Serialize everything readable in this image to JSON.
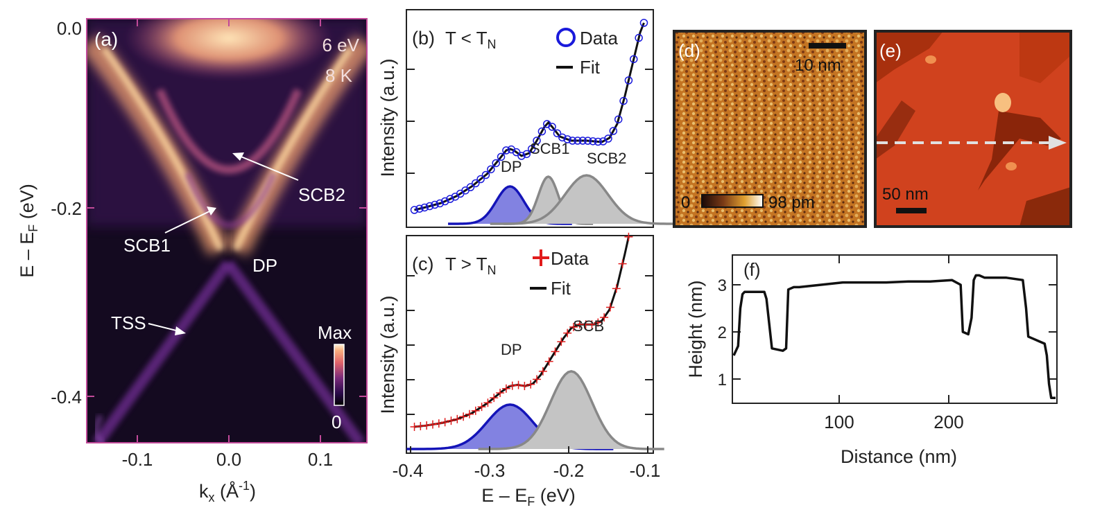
{
  "panel_a": {
    "label": "(a)",
    "photon_energy": "6 eV",
    "temperature": "8 K",
    "annotations": {
      "scb2": "SCB2",
      "scb1": "SCB1",
      "dp": "DP",
      "tss": "TSS"
    },
    "colorbar": {
      "max": "Max",
      "min": "0"
    },
    "xlabel_main": "k",
    "xlabel_sub": "x",
    "xlabel_rest": " (Å",
    "xlabel_sup": "-1",
    "xlabel_end": ")",
    "ylabel_main": "E – E",
    "ylabel_sub": "F",
    "ylabel_end": " (eV)",
    "xticks": [
      "-0.1",
      "0.0",
      "0.1"
    ],
    "yticks": [
      "0.0",
      "-0.2",
      "-0.4"
    ]
  },
  "panel_b": {
    "label": "(b)",
    "condition_main": "T < T",
    "condition_sub": "N",
    "legend_data": "Data",
    "legend_fit": "Fit",
    "ylabel": "Intensity (a.u.)",
    "peaks": {
      "dp": "DP",
      "scb1": "SCB1",
      "scb2": "SCB2"
    }
  },
  "panel_c": {
    "label": "(c)",
    "condition_main": "T > T",
    "condition_sub": "N",
    "legend_data": "Data",
    "legend_fit": "Fit",
    "ylabel": "Intensity (a.u.)",
    "peaks": {
      "dp": "DP",
      "scb": "SCB"
    },
    "xticks": [
      "-0.4",
      "-0.3",
      "-0.2",
      "-0.1"
    ],
    "xlabel_main": "E – E",
    "xlabel_sub": "F",
    "xlabel_end": " (eV)"
  },
  "panel_d": {
    "label": "(d)",
    "scale": "10 nm",
    "cbar_min": "0",
    "cbar_max": "98 pm"
  },
  "panel_e": {
    "label": "(e)",
    "scale": "50 nm"
  },
  "panel_f": {
    "label": "(f)",
    "ylabel": "Height (nm)",
    "xlabel": "Distance (nm)",
    "xticks": [
      "100",
      "200"
    ],
    "yticks": [
      "1",
      "2",
      "3"
    ]
  },
  "colors": {
    "data_b": "#1a1adb",
    "data_c": "#e11b1b",
    "dp_fill": "#7b7bdf",
    "dp_line": "#1414b8",
    "scb_fill": "#c4c4c4",
    "scb_line": "#888888"
  },
  "chart_data": [
    {
      "type": "line",
      "panel": "b",
      "x_range": [
        -0.4,
        -0.09
      ],
      "xlabel": "E – EF (eV)",
      "ylabel": "Intensity (a.u.)",
      "peaks": [
        {
          "name": "DP",
          "center": -0.27,
          "amp": 0.27,
          "width": 0.018
        },
        {
          "name": "SCB1",
          "center": -0.22,
          "amp": 0.34,
          "width": 0.013
        },
        {
          "name": "SCB2",
          "center": -0.17,
          "amp": 0.35,
          "width": 0.028
        }
      ],
      "fit_x": [
        -0.395,
        -0.38,
        -0.36,
        -0.34,
        -0.32,
        -0.3,
        -0.285,
        -0.275,
        -0.27,
        -0.265,
        -0.255,
        -0.245,
        -0.235,
        -0.225,
        -0.22,
        -0.215,
        -0.205,
        -0.19,
        -0.17,
        -0.15,
        -0.14,
        -0.13,
        -0.12,
        -0.11,
        -0.1,
        -0.095
      ],
      "fit_y": [
        0.1,
        0.12,
        0.15,
        0.2,
        0.27,
        0.36,
        0.46,
        0.53,
        0.54,
        0.53,
        0.49,
        0.51,
        0.6,
        0.7,
        0.73,
        0.7,
        0.63,
        0.6,
        0.6,
        0.59,
        0.62,
        0.72,
        0.92,
        1.15,
        1.38,
        1.45
      ]
    },
    {
      "type": "line",
      "panel": "c",
      "x_range": [
        -0.4,
        -0.09
      ],
      "xlabel": "E – EF (eV)",
      "ylabel": "Intensity (a.u.)",
      "xticks": [
        -0.4,
        -0.3,
        -0.2,
        -0.1
      ],
      "peaks": [
        {
          "name": "DP",
          "center": -0.27,
          "amp": 0.36,
          "width": 0.03
        },
        {
          "name": "SCB",
          "center": -0.19,
          "amp": 0.63,
          "width": 0.027
        }
      ],
      "fit_x": [
        -0.395,
        -0.38,
        -0.36,
        -0.34,
        -0.32,
        -0.3,
        -0.28,
        -0.27,
        -0.26,
        -0.25,
        -0.24,
        -0.23,
        -0.22,
        -0.21,
        -0.2,
        -0.19,
        -0.18,
        -0.17,
        -0.16,
        -0.15,
        -0.14,
        -0.13,
        -0.12,
        -0.115
      ],
      "fit_y": [
        0.18,
        0.19,
        0.21,
        0.24,
        0.29,
        0.37,
        0.47,
        0.51,
        0.52,
        0.51,
        0.53,
        0.6,
        0.7,
        0.8,
        0.9,
        0.98,
        1.01,
        1.01,
        1.01,
        1.04,
        1.13,
        1.32,
        1.58,
        1.72
      ]
    },
    {
      "type": "line",
      "panel": "f",
      "xlabel": "Distance (nm)",
      "ylabel": "Height (nm)",
      "x_range": [
        0,
        295
      ],
      "y_range": [
        0.5,
        3.5
      ],
      "xticks": [
        100,
        200
      ],
      "yticks": [
        1,
        2,
        3
      ],
      "x": [
        0,
        2,
        4,
        6,
        8,
        10,
        20,
        28,
        30,
        35,
        45,
        48,
        50,
        55,
        60,
        80,
        100,
        120,
        140,
        160,
        180,
        200,
        208,
        210,
        215,
        218,
        220,
        222,
        225,
        230,
        250,
        265,
        268,
        270,
        275,
        280,
        285,
        287,
        289,
        291,
        295
      ],
      "y": [
        1.5,
        1.6,
        1.7,
        2.5,
        2.8,
        2.85,
        2.85,
        2.85,
        2.7,
        1.65,
        1.6,
        1.65,
        2.9,
        2.95,
        2.95,
        3.0,
        3.05,
        3.05,
        3.05,
        3.07,
        3.07,
        3.1,
        3.0,
        2.0,
        1.95,
        2.3,
        3.1,
        3.2,
        3.2,
        3.15,
        3.15,
        3.1,
        2.5,
        1.9,
        1.85,
        1.8,
        1.75,
        1.5,
        0.9,
        0.6,
        0.6
      ]
    }
  ]
}
